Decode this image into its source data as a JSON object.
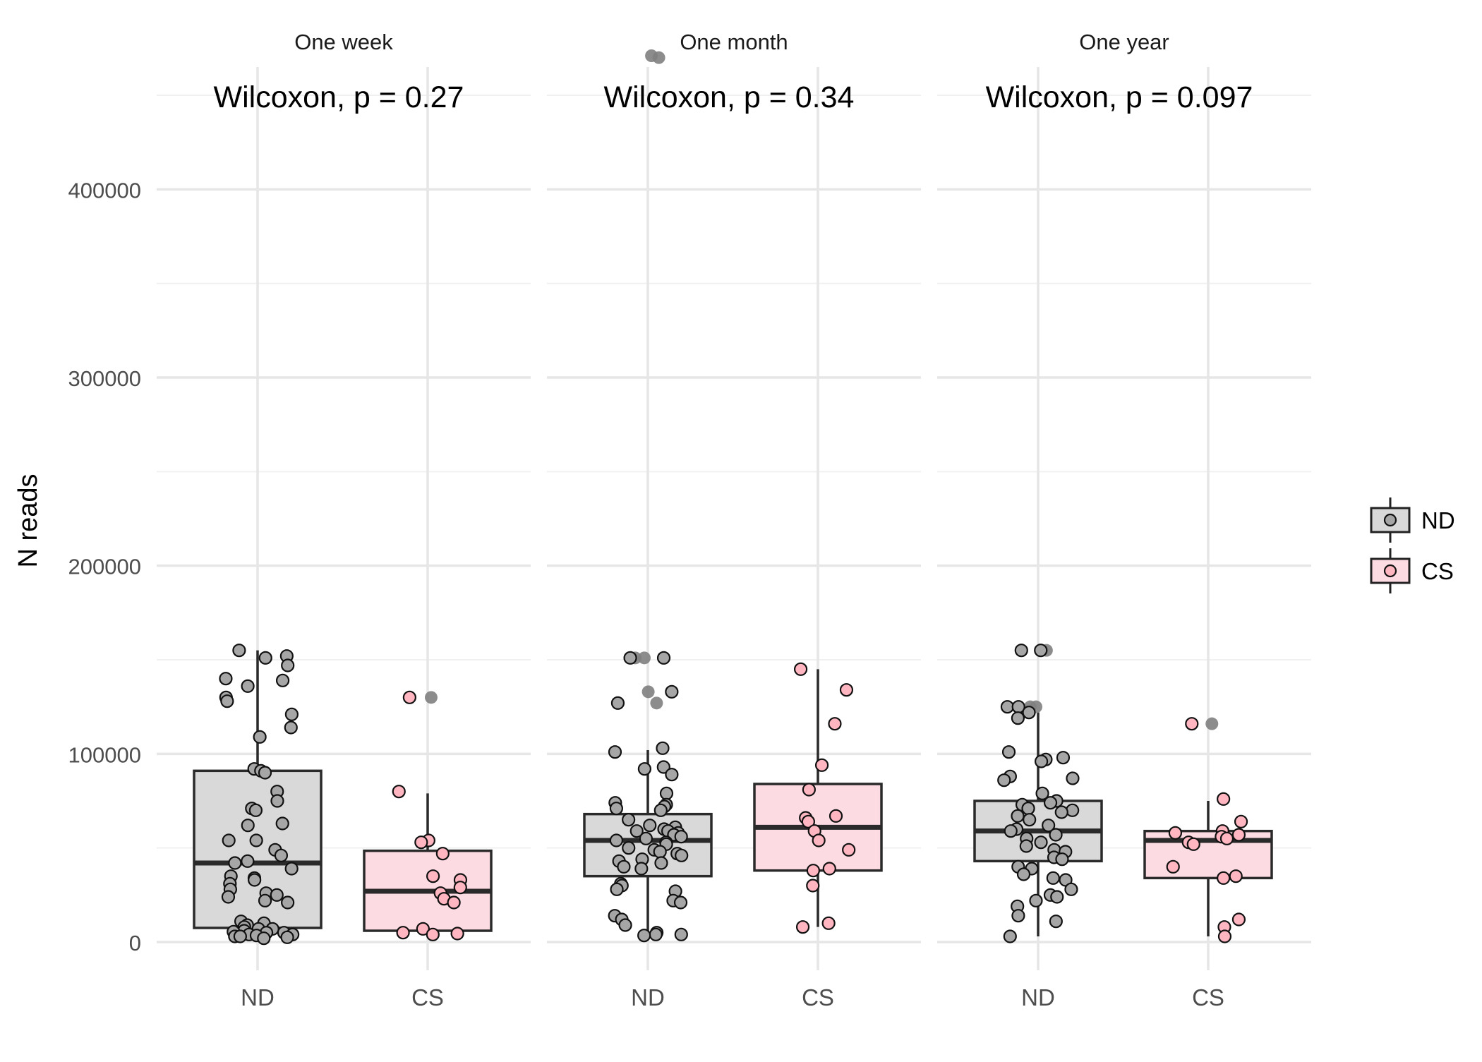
{
  "chart_data": {
    "type": "box",
    "ylabel": "N reads",
    "xlabel": "",
    "ylim": [
      -15000,
      465000
    ],
    "y_ticks": [
      0,
      100000,
      200000,
      300000,
      400000
    ],
    "y_tick_labels": [
      "0",
      "100000",
      "200000",
      "300000",
      "400000"
    ],
    "grid": true,
    "categories": [
      "ND",
      "CS"
    ],
    "legend": {
      "position": "right",
      "entries": [
        {
          "name": "ND",
          "fill": "#d9d9d9",
          "point": "#a6a6a6"
        },
        {
          "name": "CS",
          "fill": "#fddbe3",
          "point": "#ffb6c1"
        }
      ]
    },
    "facets": [
      {
        "title": "One week",
        "annotation": "Wilcoxon, p = 0.27",
        "groups": [
          {
            "name": "ND",
            "box": {
              "q1": 7500,
              "median": 42000,
              "q3": 91000,
              "whisker_low": 2000,
              "whisker_high": 155000
            },
            "outliers": [],
            "points": [
              155000,
              152000,
              151000,
              147000,
              140000,
              139000,
              136000,
              130000,
              128000,
              121000,
              114000,
              109000,
              92000,
              91000,
              90000,
              80000,
              75000,
              71000,
              70000,
              63000,
              62000,
              54000,
              54000,
              49000,
              46000,
              43000,
              42000,
              39000,
              35000,
              34000,
              33000,
              31000,
              28000,
              26000,
              25000,
              24000,
              22000,
              21000,
              11000,
              10000,
              9000,
              8000,
              7000,
              7000,
              6000,
              5500,
              5000,
              5000,
              4000,
              4000,
              3500,
              3000,
              3000,
              2500,
              2000
            ]
          },
          {
            "name": "CS",
            "box": {
              "q1": 6000,
              "median": 27000,
              "q3": 48500,
              "whisker_low": 3000,
              "whisker_high": 79000
            },
            "outliers": [
              130000
            ],
            "points": [
              130000,
              80000,
              54000,
              53000,
              47000,
              35000,
              33000,
              29000,
              26000,
              23000,
              21000,
              7000,
              5000,
              4500,
              4000
            ]
          }
        ]
      },
      {
        "title": "One month",
        "annotation": "Wilcoxon, p = 0.34",
        "groups": [
          {
            "name": "ND",
            "box": {
              "q1": 35000,
              "median": 54000,
              "q3": 68000,
              "whisker_low": 4000,
              "whisker_high": 102000
            },
            "outliers": [
              471000,
              470000,
              151000,
              151000,
              133000,
              127000
            ],
            "points": [
              151000,
              151000,
              133000,
              127000,
              103000,
              101000,
              93000,
              92000,
              89000,
              79000,
              74000,
              73000,
              72000,
              71000,
              70000,
              65000,
              62000,
              61000,
              60000,
              59000,
              59000,
              58000,
              57000,
              56000,
              55000,
              54000,
              53000,
              52000,
              50000,
              49000,
              48000,
              47000,
              46000,
              44000,
              43000,
              42000,
              40000,
              39000,
              31000,
              30000,
              28000,
              27000,
              22000,
              21000,
              14000,
              12000,
              9000,
              5000,
              4000,
              4000,
              3500
            ]
          },
          {
            "name": "CS",
            "box": {
              "q1": 38000,
              "median": 61000,
              "q3": 84000,
              "whisker_low": 8000,
              "whisker_high": 145000
            },
            "outliers": [],
            "points": [
              145000,
              134000,
              116000,
              94000,
              81000,
              67000,
              66000,
              64000,
              59000,
              54000,
              49000,
              39000,
              38000,
              30000,
              10000,
              8000
            ]
          }
        ]
      },
      {
        "title": "One year",
        "annotation": "Wilcoxon, p = 0.097",
        "groups": [
          {
            "name": "ND",
            "box": {
              "q1": 43000,
              "median": 59000,
              "q3": 75000,
              "whisker_low": 3000,
              "whisker_high": 122000
            },
            "outliers": [
              155000,
              155000,
              125000,
              125000
            ],
            "points": [
              155000,
              155000,
              125000,
              125000,
              122000,
              119000,
              101000,
              98000,
              97000,
              96000,
              88000,
              87000,
              86000,
              79000,
              75000,
              74000,
              73000,
              71000,
              70000,
              69000,
              67000,
              65000,
              62000,
              60000,
              59000,
              57000,
              55000,
              53000,
              51000,
              49000,
              48000,
              45000,
              44000,
              40000,
              39000,
              36000,
              34000,
              33000,
              28000,
              25000,
              24000,
              22000,
              19000,
              14000,
              11000,
              3000
            ]
          },
          {
            "name": "CS",
            "box": {
              "q1": 34000,
              "median": 54000,
              "q3": 59000,
              "whisker_low": 3000,
              "whisker_high": 75000
            },
            "outliers": [
              116000
            ],
            "points": [
              116000,
              76000,
              64000,
              59000,
              58000,
              57000,
              56000,
              55000,
              53000,
              52000,
              40000,
              35000,
              34000,
              12000,
              8000,
              3000
            ]
          }
        ]
      }
    ]
  }
}
